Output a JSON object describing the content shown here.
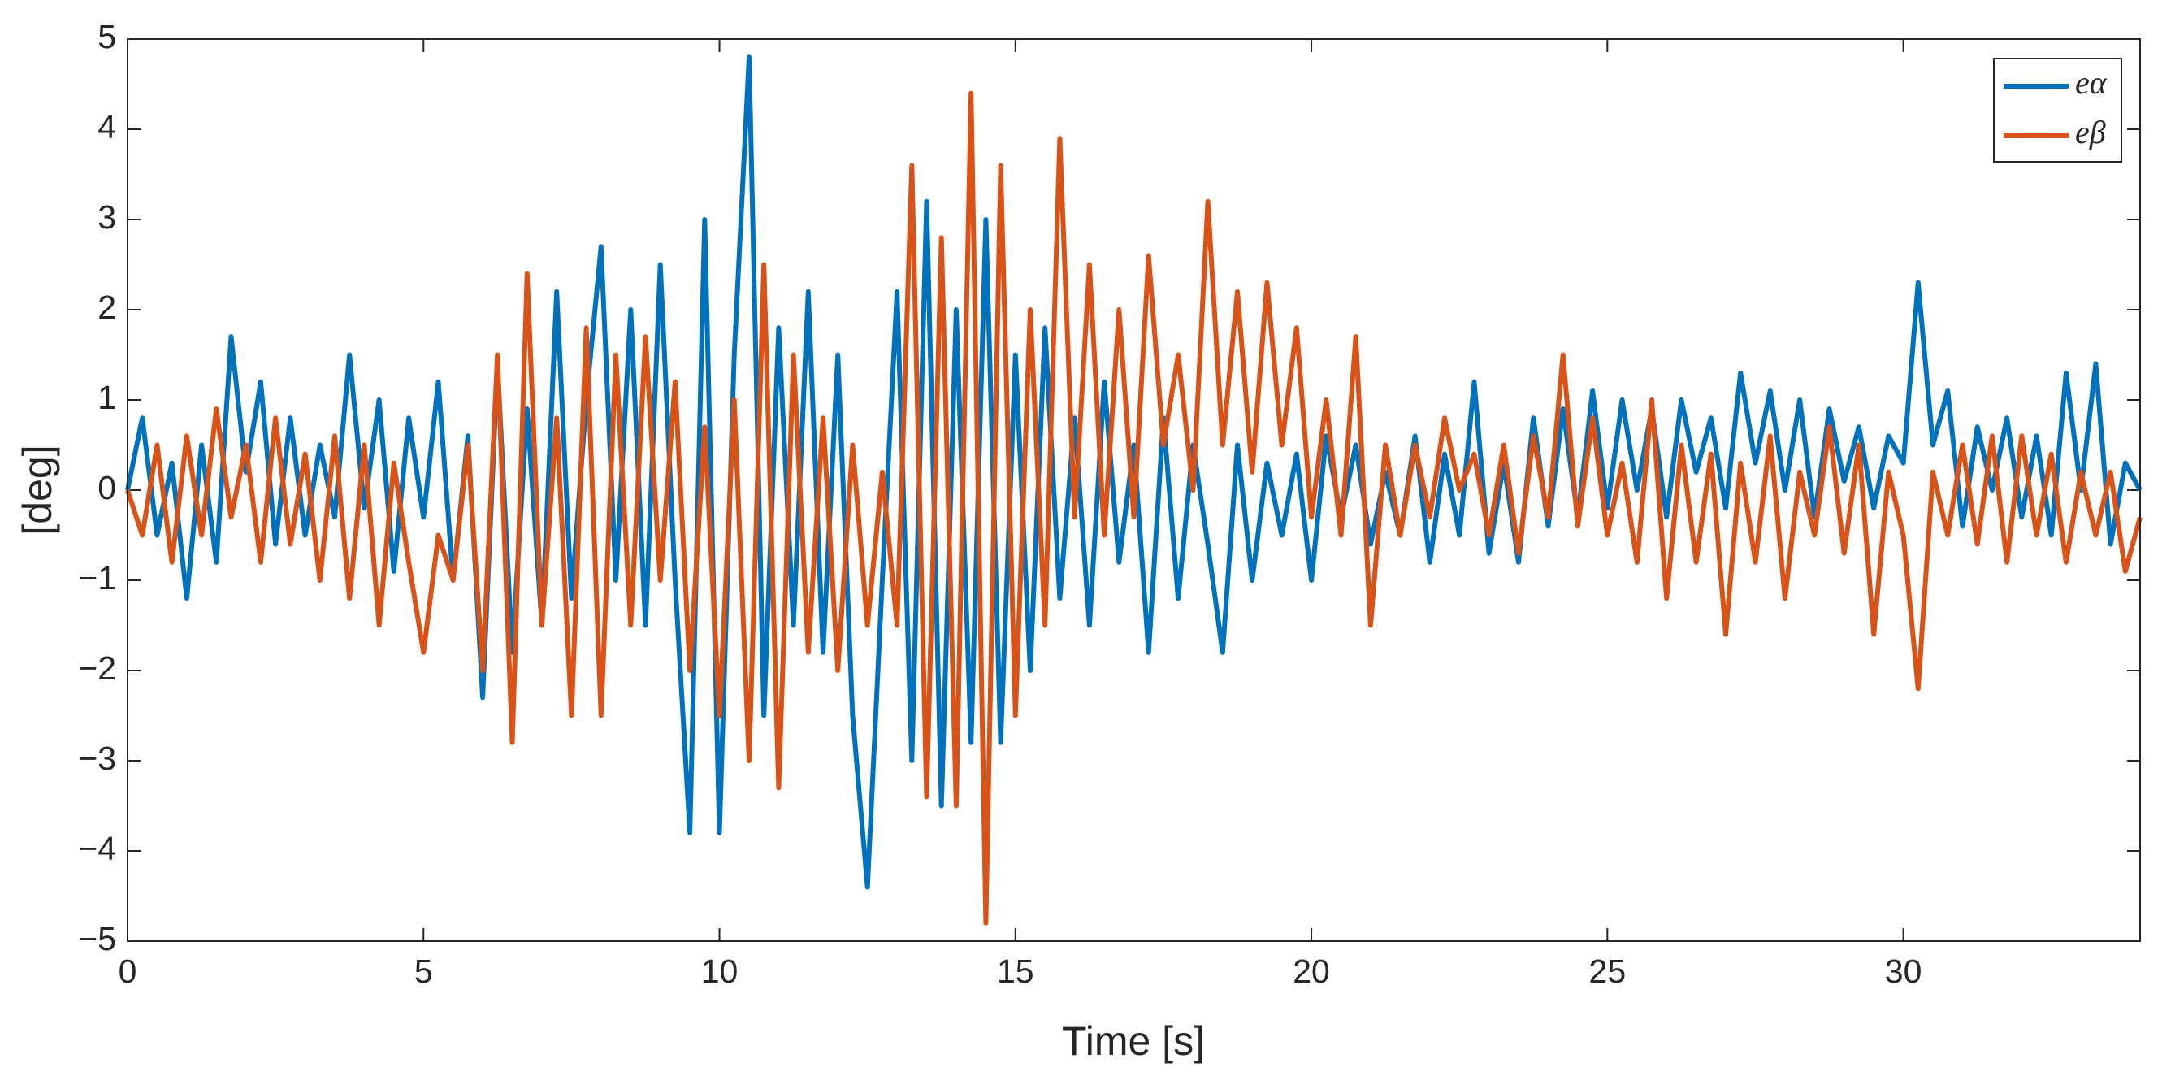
{
  "chart_data": {
    "type": "line",
    "xlabel": "Time [s]",
    "ylabel": "[deg]",
    "x": [
      0,
      0.25,
      0.5,
      0.75,
      1,
      1.25,
      1.5,
      1.75,
      2,
      2.25,
      2.5,
      2.75,
      3,
      3.25,
      3.5,
      3.75,
      4,
      4.25,
      4.5,
      4.75,
      5,
      5.25,
      5.5,
      5.75,
      6,
      6.25,
      6.5,
      6.75,
      7,
      7.25,
      7.5,
      7.75,
      8,
      8.25,
      8.5,
      8.75,
      9,
      9.25,
      9.5,
      9.75,
      10,
      10.25,
      10.5,
      10.75,
      11,
      11.25,
      11.5,
      11.75,
      12,
      12.25,
      12.5,
      12.75,
      13,
      13.25,
      13.5,
      13.75,
      14,
      14.25,
      14.5,
      14.75,
      15,
      15.25,
      15.5,
      15.75,
      16,
      16.25,
      16.5,
      16.75,
      17,
      17.25,
      17.5,
      17.75,
      18,
      18.25,
      18.5,
      18.75,
      19,
      19.25,
      19.5,
      19.75,
      20,
      20.25,
      20.5,
      20.75,
      21,
      21.25,
      21.5,
      21.75,
      22,
      22.25,
      22.5,
      22.75,
      23,
      23.25,
      23.5,
      23.75,
      24,
      24.25,
      24.5,
      24.75,
      25,
      25.25,
      25.5,
      25.75,
      26,
      26.25,
      26.5,
      26.75,
      27,
      27.25,
      27.5,
      27.75,
      28,
      28.25,
      28.5,
      28.75,
      29,
      29.25,
      29.5,
      29.75,
      30,
      30.25,
      30.5,
      30.75,
      31,
      31.25,
      31.5,
      31.75,
      32,
      32.25,
      32.5,
      32.75,
      33,
      33.25,
      33.5,
      33.75,
      34
    ],
    "series": [
      {
        "name": "eα",
        "color": "#0072BD",
        "values": [
          0,
          0.8,
          -0.5,
          0.3,
          -1.2,
          0.5,
          -0.8,
          1.7,
          0.2,
          1.2,
          -0.6,
          0.8,
          -0.5,
          0.5,
          -0.3,
          1.5,
          -0.2,
          1.0,
          -0.9,
          0.8,
          -0.3,
          1.2,
          -1.0,
          0.6,
          -2.3,
          1.4,
          -1.8,
          0.9,
          -1.5,
          2.2,
          -1.2,
          1.0,
          2.7,
          -1.0,
          2.0,
          -1.5,
          2.5,
          -1.0,
          -3.8,
          3.0,
          -3.8,
          1.5,
          4.8,
          -2.5,
          1.8,
          -1.5,
          2.2,
          -1.8,
          1.5,
          -2.5,
          -4.4,
          -1.0,
          2.2,
          -3.0,
          3.2,
          -3.5,
          2.0,
          -2.8,
          3.0,
          -2.8,
          1.5,
          -2.0,
          1.8,
          -1.2,
          0.8,
          -1.5,
          1.2,
          -0.8,
          0.5,
          -1.8,
          0.8,
          -1.2,
          0.5,
          -0.6,
          -1.8,
          0.5,
          -1.0,
          0.3,
          -0.5,
          0.4,
          -1.0,
          0.6,
          -0.3,
          0.5,
          -0.6,
          0.2,
          -0.5,
          0.6,
          -0.8,
          0.4,
          -0.5,
          1.2,
          -0.7,
          0.3,
          -0.8,
          0.8,
          -0.4,
          0.9,
          -0.3,
          1.1,
          -0.2,
          1.0,
          0.0,
          0.9,
          -0.3,
          1.0,
          0.2,
          0.8,
          -0.2,
          1.3,
          0.3,
          1.1,
          0.0,
          1.0,
          -0.3,
          0.9,
          0.1,
          0.7,
          -0.2,
          0.6,
          0.3,
          2.3,
          0.5,
          1.1,
          -0.4,
          0.7,
          0.0,
          0.8,
          -0.3,
          0.6,
          -0.5,
          1.3,
          0.0,
          1.4,
          -0.6,
          0.3,
          0.0
        ]
      },
      {
        "name": "eβ",
        "color": "#D95319",
        "values": [
          0,
          -0.5,
          0.5,
          -0.8,
          0.6,
          -0.5,
          0.9,
          -0.3,
          0.5,
          -0.8,
          0.8,
          -0.6,
          0.4,
          -1.0,
          0.6,
          -1.2,
          0.5,
          -1.5,
          0.3,
          -0.8,
          -1.8,
          -0.5,
          -1.0,
          0.5,
          -2.0,
          1.5,
          -2.8,
          2.4,
          -1.5,
          0.8,
          -2.5,
          1.8,
          -2.5,
          1.5,
          -1.5,
          1.7,
          -1.0,
          1.2,
          -2.0,
          0.7,
          -2.5,
          1.0,
          -3.0,
          2.5,
          -3.3,
          1.5,
          -1.8,
          0.8,
          -2.0,
          0.5,
          -1.5,
          0.2,
          -1.5,
          3.6,
          -3.4,
          2.8,
          -3.5,
          4.4,
          -4.8,
          3.6,
          -2.5,
          2.0,
          -1.5,
          3.9,
          -0.3,
          2.5,
          -0.5,
          2.0,
          -0.3,
          2.6,
          0.5,
          1.5,
          0.0,
          3.2,
          0.5,
          2.2,
          0.2,
          2.3,
          0.5,
          1.8,
          -0.3,
          1.0,
          -0.5,
          1.7,
          -1.5,
          0.5,
          -0.5,
          0.5,
          -0.3,
          0.8,
          0.0,
          0.4,
          -0.5,
          0.5,
          -0.7,
          0.6,
          -0.3,
          1.5,
          -0.4,
          0.8,
          -0.5,
          0.3,
          -0.8,
          1.0,
          -1.2,
          0.5,
          -0.8,
          0.4,
          -1.6,
          0.3,
          -0.8,
          0.6,
          -1.2,
          0.2,
          -0.5,
          0.7,
          -0.7,
          0.5,
          -1.6,
          0.2,
          -0.5,
          -2.2,
          0.2,
          -0.5,
          0.5,
          -0.6,
          0.6,
          -0.8,
          0.6,
          -0.5,
          0.4,
          -0.8,
          0.2,
          -0.5,
          0.2,
          -0.9,
          -0.3
        ]
      }
    ],
    "xlim": [
      0,
      34
    ],
    "xticks": [
      0,
      5,
      10,
      15,
      20,
      25,
      30
    ],
    "ylim": [
      -5,
      5
    ],
    "yticks": [
      {
        "value": -5,
        "label": "−5"
      },
      {
        "value": -4,
        "label": "−4"
      },
      {
        "value": -3,
        "label": "−3"
      },
      {
        "value": -2,
        "label": "−2"
      },
      {
        "value": -1,
        "label": "−1"
      },
      0,
      1,
      2,
      3,
      4,
      5
    ],
    "grid": false,
    "legend": "northeast"
  }
}
